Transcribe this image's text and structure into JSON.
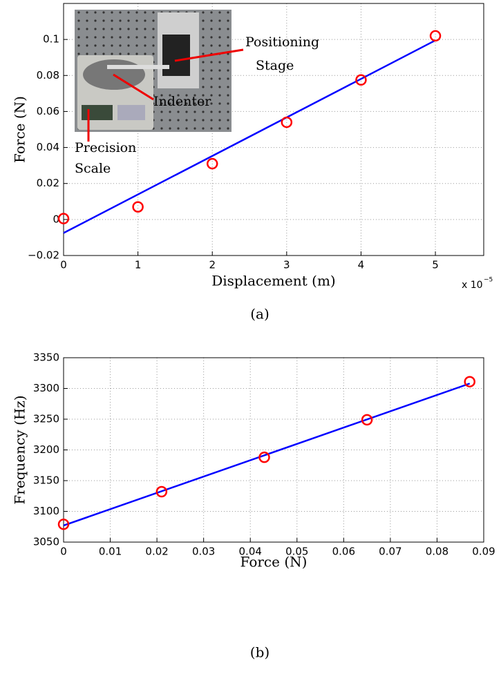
{
  "chart_data": [
    {
      "type": "line",
      "xlabel": "Displacement (m)",
      "ylabel": "Force (N)",
      "x_multiplier": "x 10",
      "x_exponent": "−5",
      "caption": "(a)",
      "xlim": [
        0,
        5.65
      ],
      "xticks": [
        0,
        1,
        2,
        3,
        4,
        5
      ],
      "ylim": [
        -0.02,
        0.12
      ],
      "yticks": [
        {
          "value": -0.02,
          "label": "−0.02"
        },
        0,
        0.02,
        0.04,
        0.06,
        0.08,
        0.1
      ],
      "grid": true,
      "annotations": [
        "Positioning",
        "Stage",
        "Indenter",
        "Precision",
        "Scale"
      ],
      "series": [
        {
          "mode": "lines",
          "color": "#0000ff",
          "x": [
            0,
            5
          ],
          "values": [
            -0.0075,
            0.0995
          ]
        },
        {
          "mode": "markers",
          "color": "#ff0000",
          "x": [
            0,
            1,
            2,
            3,
            4,
            5
          ],
          "values": [
            0.0005,
            0.007,
            0.031,
            0.054,
            0.0775,
            0.102
          ]
        }
      ]
    },
    {
      "type": "line",
      "xlabel": "Force (N)",
      "ylabel": "Frequency (Hz)",
      "caption": "(b)",
      "xlim": [
        0,
        0.09
      ],
      "xticks": [
        0,
        0.01,
        0.02,
        0.03,
        0.04,
        0.05,
        0.06,
        0.07,
        0.08,
        0.09
      ],
      "ylim": [
        3050,
        3350
      ],
      "yticks": [
        3050,
        3100,
        3150,
        3200,
        3250,
        3300,
        3350
      ],
      "grid": true,
      "series": [
        {
          "mode": "lines",
          "color": "#0000ff",
          "x": [
            0,
            0.087
          ],
          "values": [
            3077,
            3308
          ]
        },
        {
          "mode": "markers",
          "color": "#ff0000",
          "x": [
            0,
            0.021,
            0.043,
            0.065,
            0.087
          ],
          "values": [
            3079,
            3132,
            3188,
            3249,
            3311
          ]
        }
      ]
    }
  ]
}
